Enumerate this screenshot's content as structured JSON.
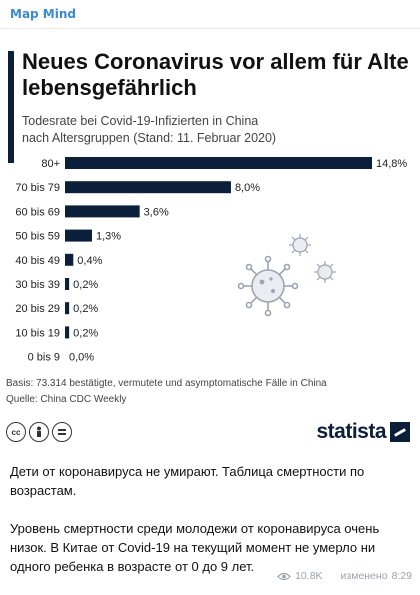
{
  "channel": {
    "name": "Map Mind"
  },
  "chart_data": {
    "type": "bar",
    "orientation": "horizontal",
    "title": "Neues Coronavirus vor allem für Alte lebensgefährlich",
    "subtitle_line1": "Todesrate bei Covid-19-Infizierten in China",
    "subtitle_line2": "nach Altersgruppen (Stand: 11. Februar 2020)",
    "categories": [
      "80+",
      "70 bis 79",
      "60 bis 69",
      "50 bis 59",
      "40 bis 49",
      "30 bis 39",
      "20 bis 29",
      "10 bis 19",
      "0 bis 9"
    ],
    "values": [
      14.8,
      8.0,
      3.6,
      1.3,
      0.4,
      0.2,
      0.2,
      0.2,
      0.0
    ],
    "value_labels": [
      "14,8%",
      "8,0%",
      "3,6%",
      "1,3%",
      "0,4%",
      "0,2%",
      "0,2%",
      "0,2%",
      "0,0%"
    ],
    "xlim": [
      0,
      14.8
    ],
    "grid": false,
    "bar_color": "#0b1f3a"
  },
  "footnote": {
    "basis": "Basis: 73.314 bestätigte, vermutete und asymptomatische Fälle in China",
    "source": "Quelle: China CDC Weekly"
  },
  "license_icons": [
    "cc-icon",
    "person-icon",
    "equals-icon"
  ],
  "logo": {
    "text": "statista",
    "color": "#0b1f3a"
  },
  "message": {
    "paragraph1": "Дети от коронавируса не умирают. Таблица смертности по возрастам.",
    "paragraph2": "Уровень смертности среди молодежи от коронавируса очень низок. В Китае от Covid-19 на текущий момент не умерло ни одного ребенка в возрасте от 0 до 9 лет."
  },
  "meta": {
    "views": "10.8K",
    "edited": "изменено",
    "time": "8:29"
  }
}
